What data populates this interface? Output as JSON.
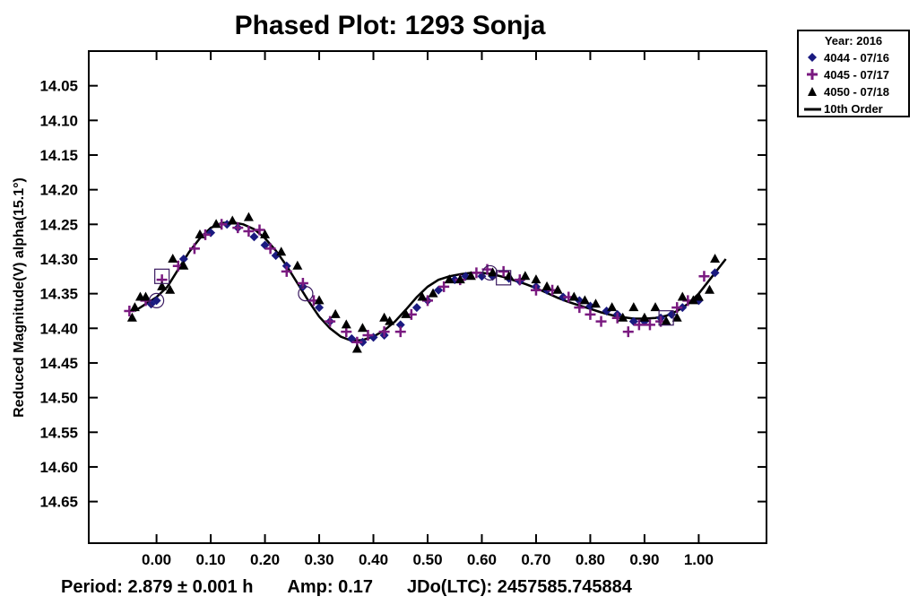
{
  "chart_data": {
    "type": "scatter",
    "title": "Phased Plot: 1293 Sonja",
    "xlabel": "",
    "ylabel": "Reduced Magnitude(V) alpha(15.1°)",
    "xlim": [
      -0.125,
      1.125
    ],
    "ylim": [
      14.71,
      14.0
    ],
    "y_inverted": true,
    "x_ticks": [
      "0.00",
      "0.10",
      "0.20",
      "0.30",
      "0.40",
      "0.50",
      "0.60",
      "0.70",
      "0.80",
      "0.90",
      "1.00"
    ],
    "y_ticks": [
      "14.05",
      "14.10",
      "14.15",
      "14.20",
      "14.25",
      "14.30",
      "14.35",
      "14.40",
      "14.45",
      "14.50",
      "14.55",
      "14.60",
      "14.65"
    ],
    "legend": {
      "title": "Year: 2016",
      "placement": "outside-top-right",
      "entries": [
        {
          "label": "4044 - 07/16",
          "marker": "diamond",
          "color": "#1a1a80"
        },
        {
          "label": "4045 - 07/17",
          "marker": "plus",
          "color": "#7a1a80"
        },
        {
          "label": "4050 - 07/18",
          "marker": "triangle",
          "color": "#000000"
        },
        {
          "label": "10th Order",
          "marker": "line",
          "color": "#000000"
        }
      ]
    },
    "series": [
      {
        "name": "4044 - 07/16",
        "marker": "diamond",
        "color": "#1a1a80",
        "x": [
          -0.01,
          0.0,
          0.05,
          0.1,
          0.13,
          0.15,
          0.18,
          0.2,
          0.22,
          0.24,
          0.27,
          0.3,
          0.32,
          0.36,
          0.38,
          0.4,
          0.42,
          0.45,
          0.48,
          0.5,
          0.52,
          0.55,
          0.57,
          0.6,
          0.62,
          0.65,
          0.67,
          0.7,
          0.72,
          0.75,
          0.78,
          0.8,
          0.83,
          0.85,
          0.88,
          0.9,
          0.93,
          0.95,
          0.97,
          1.0,
          1.03
        ],
        "y": [
          14.365,
          14.36,
          14.3,
          14.262,
          14.25,
          14.255,
          14.268,
          14.28,
          14.295,
          14.31,
          14.34,
          14.37,
          14.39,
          14.415,
          14.42,
          14.413,
          14.41,
          14.395,
          14.37,
          14.36,
          14.345,
          14.33,
          14.325,
          14.325,
          14.325,
          14.328,
          14.332,
          14.34,
          14.345,
          14.355,
          14.36,
          14.368,
          14.375,
          14.38,
          14.39,
          14.39,
          14.385,
          14.38,
          14.37,
          14.36,
          14.32
        ]
      },
      {
        "name": "4045 - 07/17",
        "marker": "plus",
        "color": "#7a1a80",
        "x": [
          -0.05,
          -0.02,
          0.01,
          0.04,
          0.07,
          0.09,
          0.12,
          0.15,
          0.17,
          0.19,
          0.21,
          0.24,
          0.27,
          0.29,
          0.32,
          0.35,
          0.37,
          0.39,
          0.42,
          0.45,
          0.47,
          0.5,
          0.53,
          0.56,
          0.59,
          0.61,
          0.64,
          0.67,
          0.7,
          0.73,
          0.76,
          0.78,
          0.8,
          0.82,
          0.85,
          0.87,
          0.89,
          0.91,
          0.93,
          0.96,
          0.98,
          1.01
        ],
        "y": [
          14.375,
          14.36,
          14.33,
          14.31,
          14.285,
          14.265,
          14.25,
          14.255,
          14.26,
          14.258,
          14.285,
          14.318,
          14.335,
          14.36,
          14.39,
          14.405,
          14.42,
          14.41,
          14.405,
          14.405,
          14.38,
          14.36,
          14.34,
          14.33,
          14.32,
          14.315,
          14.318,
          14.33,
          14.345,
          14.345,
          14.355,
          14.37,
          14.38,
          14.39,
          14.385,
          14.405,
          14.395,
          14.395,
          14.39,
          14.37,
          14.36,
          14.325
        ]
      },
      {
        "name": "4050 - 07/18",
        "marker": "triangle",
        "color": "#000000",
        "x": [
          -0.045,
          -0.04,
          -0.03,
          -0.02,
          0.01,
          0.025,
          0.03,
          0.05,
          0.08,
          0.11,
          0.14,
          0.17,
          0.2,
          0.23,
          0.26,
          0.3,
          0.33,
          0.35,
          0.37,
          0.38,
          0.42,
          0.43,
          0.46,
          0.49,
          0.51,
          0.54,
          0.56,
          0.58,
          0.62,
          0.65,
          0.68,
          0.7,
          0.72,
          0.74,
          0.77,
          0.79,
          0.81,
          0.84,
          0.86,
          0.88,
          0.9,
          0.92,
          0.94,
          0.96,
          0.97,
          0.99,
          1.0,
          1.02,
          1.03
        ],
        "y": [
          14.385,
          14.37,
          14.355,
          14.355,
          14.34,
          14.345,
          14.3,
          14.31,
          14.265,
          14.25,
          14.245,
          14.24,
          14.265,
          14.29,
          14.31,
          14.36,
          14.38,
          14.395,
          14.43,
          14.4,
          14.385,
          14.39,
          14.38,
          14.355,
          14.35,
          14.33,
          14.33,
          14.325,
          14.32,
          14.325,
          14.325,
          14.33,
          14.34,
          14.345,
          14.355,
          14.36,
          14.365,
          14.37,
          14.385,
          14.37,
          14.385,
          14.37,
          14.39,
          14.385,
          14.355,
          14.36,
          14.355,
          14.345,
          14.3
        ]
      }
    ],
    "fit_curve": {
      "name": "10th Order",
      "x": [
        -0.04,
        -0.02,
        0.0,
        0.02,
        0.04,
        0.06,
        0.08,
        0.1,
        0.12,
        0.14,
        0.16,
        0.18,
        0.2,
        0.22,
        0.24,
        0.26,
        0.28,
        0.3,
        0.32,
        0.34,
        0.36,
        0.38,
        0.4,
        0.42,
        0.44,
        0.46,
        0.48,
        0.5,
        0.52,
        0.54,
        0.56,
        0.58,
        0.6,
        0.62,
        0.64,
        0.66,
        0.68,
        0.7,
        0.72,
        0.74,
        0.76,
        0.78,
        0.8,
        0.82,
        0.84,
        0.86,
        0.88,
        0.9,
        0.92,
        0.94,
        0.96,
        0.98,
        1.0,
        1.02,
        1.05
      ],
      "y": [
        14.375,
        14.365,
        14.355,
        14.34,
        14.315,
        14.29,
        14.27,
        14.255,
        14.248,
        14.247,
        14.25,
        14.257,
        14.27,
        14.288,
        14.31,
        14.335,
        14.36,
        14.383,
        14.4,
        14.412,
        14.418,
        14.417,
        14.412,
        14.403,
        14.39,
        14.373,
        14.355,
        14.34,
        14.33,
        14.325,
        14.322,
        14.32,
        14.32,
        14.322,
        14.326,
        14.331,
        14.336,
        14.342,
        14.349,
        14.356,
        14.362,
        14.367,
        14.372,
        14.377,
        14.381,
        14.384,
        14.386,
        14.386,
        14.385,
        14.382,
        14.375,
        14.365,
        14.35,
        14.33,
        14.3
      ]
    },
    "circles": [
      {
        "x": 0.0,
        "y": 14.36
      },
      {
        "x": 0.275,
        "y": 14.35
      },
      {
        "x": 0.615,
        "y": 14.32
      }
    ],
    "squares": [
      {
        "x": 0.01,
        "y": 14.325
      },
      {
        "x": 0.64,
        "y": 14.327
      },
      {
        "x": 0.94,
        "y": 14.385
      }
    ]
  },
  "footer": {
    "period": "Period: 2.879 ± 0.001 h",
    "amp": "Amp: 0.17",
    "jdo": "JDo(LTC): 2457585.745884"
  }
}
